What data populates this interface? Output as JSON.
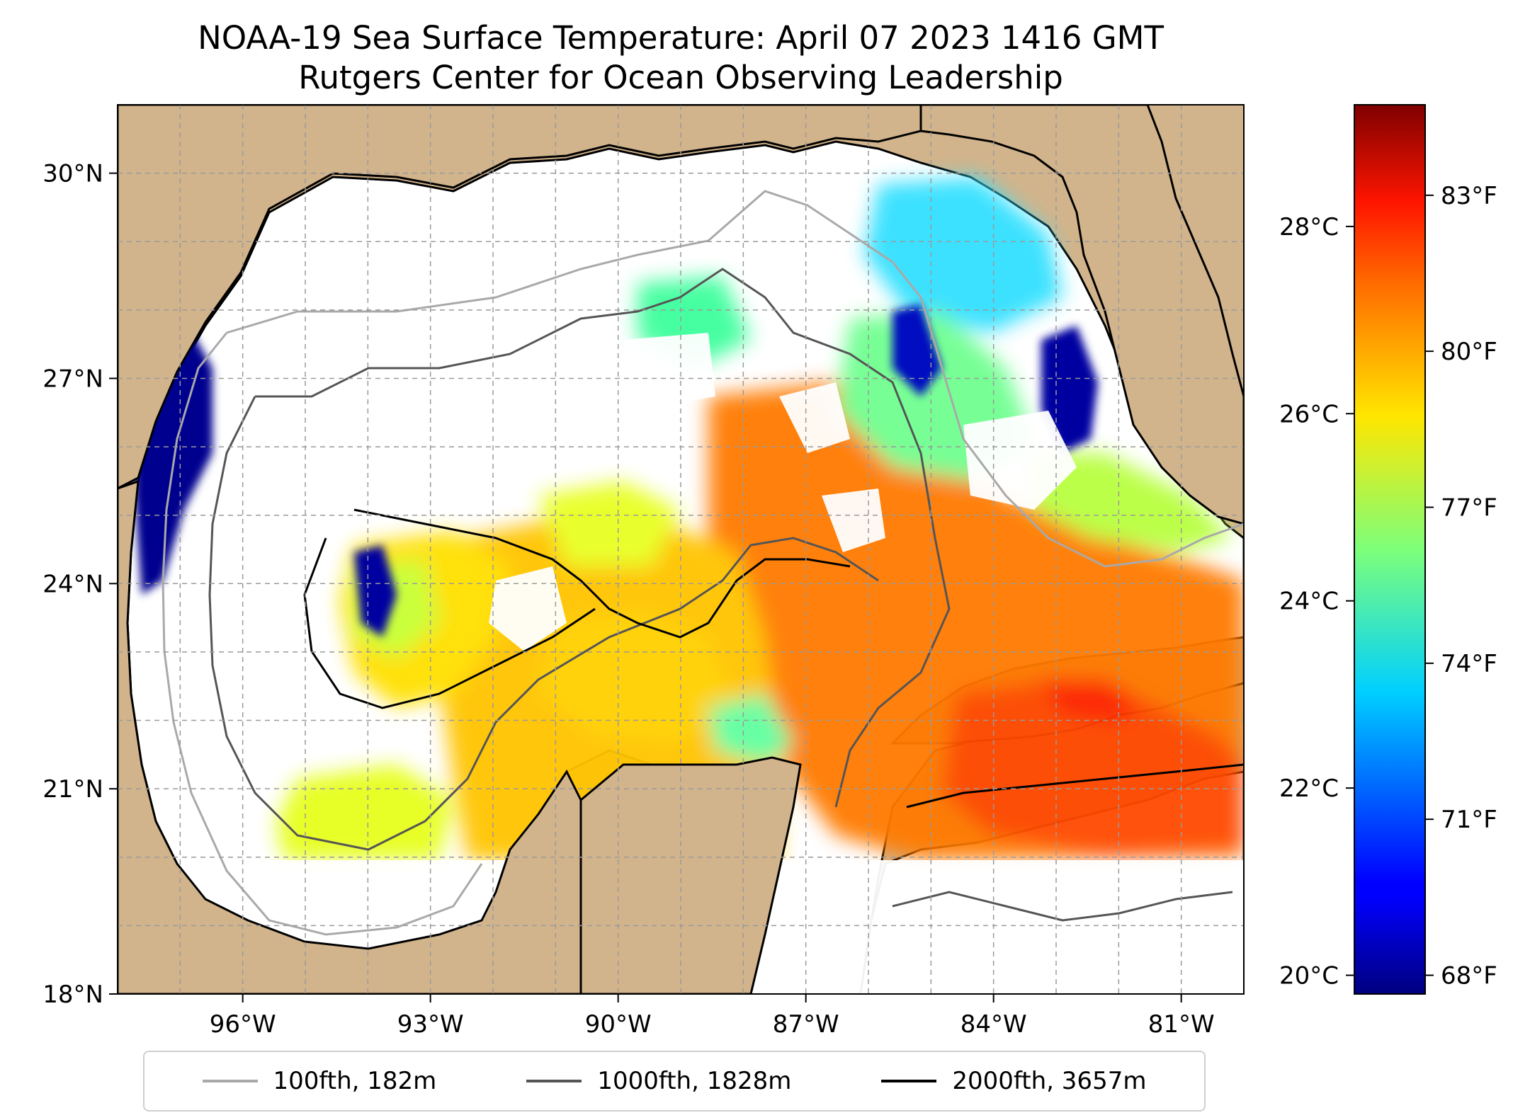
{
  "title": {
    "line1": "NOAA-19 Sea Surface Temperature: April 07 2023 1416 GMT",
    "line2": "Rutgers Center for Ocean Observing Leadership"
  },
  "map": {
    "lon_range": [
      -98.0,
      -80.0
    ],
    "lat_range": [
      18.0,
      31.0
    ],
    "x_ticks": [
      {
        "value": -96,
        "label": "96°W"
      },
      {
        "value": -93,
        "label": "93°W"
      },
      {
        "value": -90,
        "label": "90°W"
      },
      {
        "value": -87,
        "label": "87°W"
      },
      {
        "value": -84,
        "label": "84°W"
      },
      {
        "value": -81,
        "label": "81°W"
      }
    ],
    "y_ticks": [
      {
        "value": 30,
        "label": "30°N"
      },
      {
        "value": 27,
        "label": "27°N"
      },
      {
        "value": 24,
        "label": "24°N"
      },
      {
        "value": 21,
        "label": "21°N"
      },
      {
        "value": 18,
        "label": "18°N"
      }
    ],
    "gridlines": true,
    "land_color": "#d2b48c",
    "water_no_data_color": "#ffffff"
  },
  "colorbar": {
    "colormap": "jet",
    "range_c": [
      19.8,
      29.3
    ],
    "celsius_ticks": [
      {
        "value": 20,
        "label": "20°C"
      },
      {
        "value": 22,
        "label": "22°C"
      },
      {
        "value": 24,
        "label": "24°C"
      },
      {
        "value": 26,
        "label": "26°C"
      },
      {
        "value": 28,
        "label": "28°C"
      }
    ],
    "fahrenheit_ticks": [
      {
        "value": 68,
        "label": "68°F"
      },
      {
        "value": 71,
        "label": "71°F"
      },
      {
        "value": 74,
        "label": "74°F"
      },
      {
        "value": 77,
        "label": "77°F"
      },
      {
        "value": 80,
        "label": "80°F"
      },
      {
        "value": 83,
        "label": "83°F"
      }
    ]
  },
  "legend": {
    "items": [
      {
        "label": "100fth, 182m",
        "color": "#a9a9a9"
      },
      {
        "label": "1000fth, 1828m",
        "color": "#555555"
      },
      {
        "label": "2000fth, 3657m",
        "color": "#000000"
      }
    ]
  }
}
